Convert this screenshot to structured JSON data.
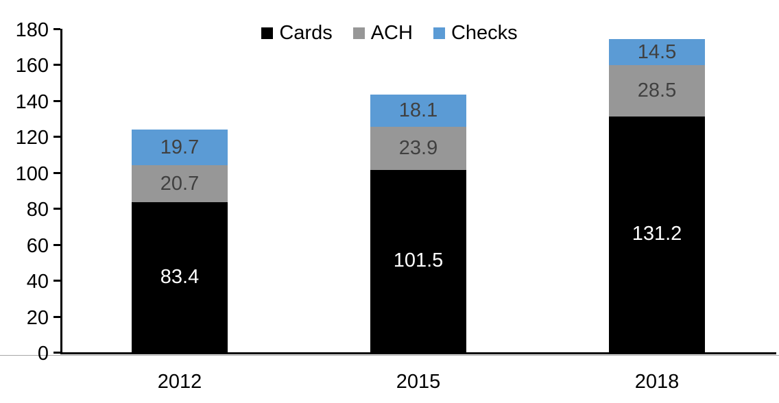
{
  "chart_data": {
    "type": "bar",
    "stacked": true,
    "title": "",
    "xlabel": "",
    "ylabel": "",
    "categories": [
      "2012",
      "2015",
      "2018"
    ],
    "series": [
      {
        "name": "Cards",
        "color": "#000000",
        "label_color": "#ffffff",
        "values": [
          83.4,
          101.5,
          131.2
        ]
      },
      {
        "name": "ACH",
        "color": "#979797",
        "label_color": "#404040",
        "values": [
          20.7,
          23.9,
          28.5
        ]
      },
      {
        "name": "Checks",
        "color": "#5b9bd5",
        "label_color": "#404040",
        "values": [
          19.7,
          18.1,
          14.5
        ]
      }
    ],
    "ylim": [
      0,
      180
    ],
    "yticks": [
      0,
      20,
      40,
      60,
      80,
      100,
      120,
      140,
      160,
      180
    ],
    "grid": false,
    "legend_position": "top-center",
    "value_labels": "inside-center",
    "axis_color": "#000000"
  }
}
